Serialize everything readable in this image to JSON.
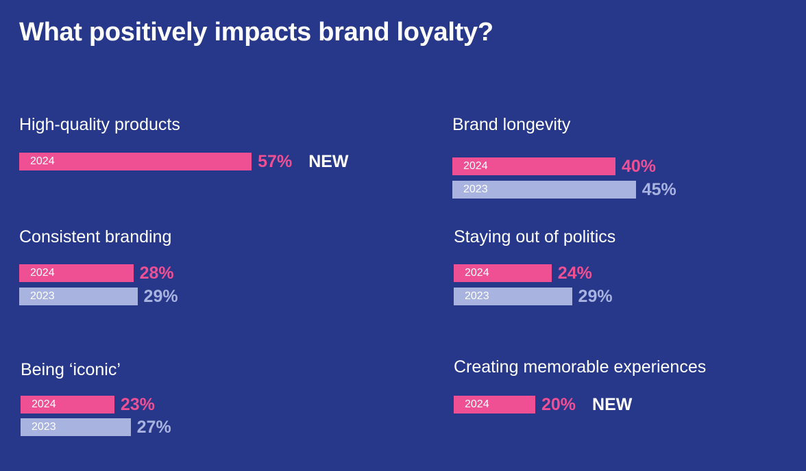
{
  "title": "What positively impacts brand loyalty?",
  "colors": {
    "background": "#27388a",
    "y2024": "#ef4f93",
    "y2023": "#a9b3df",
    "new": "#ffffff"
  },
  "new_label": "NEW",
  "chart_data": {
    "type": "bar",
    "title": "What positively impacts brand loyalty?",
    "unit": "%",
    "legend": [
      "2024",
      "2023"
    ],
    "categories": [
      "High-quality products",
      "Brand longevity",
      "Consistent branding",
      "Staying out of politics",
      "Being ‘iconic’",
      "Creating memorable experiences"
    ],
    "series": [
      {
        "name": "2024",
        "values": [
          57,
          40,
          28,
          24,
          23,
          20
        ]
      },
      {
        "name": "2023",
        "values": [
          null,
          45,
          29,
          29,
          27,
          null
        ]
      }
    ],
    "items": [
      {
        "label": "High-quality products",
        "bars": [
          {
            "year": "2024",
            "value": 57,
            "text": "57%"
          }
        ],
        "new": true
      },
      {
        "label": "Brand longevity",
        "bars": [
          {
            "year": "2024",
            "value": 40,
            "text": "40%"
          },
          {
            "year": "2023",
            "value": 45,
            "text": "45%"
          }
        ],
        "new": false
      },
      {
        "label": "Consistent branding",
        "bars": [
          {
            "year": "2024",
            "value": 28,
            "text": "28%"
          },
          {
            "year": "2023",
            "value": 29,
            "text": "29%"
          }
        ],
        "new": false
      },
      {
        "label": "Staying out of politics",
        "bars": [
          {
            "year": "2024",
            "value": 24,
            "text": "24%"
          },
          {
            "year": "2023",
            "value": 29,
            "text": "29%"
          }
        ],
        "new": false
      },
      {
        "label": "Being ‘iconic’",
        "bars": [
          {
            "year": "2024",
            "value": 23,
            "text": "23%"
          },
          {
            "year": "2023",
            "value": 27,
            "text": "27%"
          }
        ],
        "new": false
      },
      {
        "label": "Creating memorable experiences",
        "bars": [
          {
            "year": "2024",
            "value": 20,
            "text": "20%"
          }
        ],
        "new": true
      }
    ]
  }
}
